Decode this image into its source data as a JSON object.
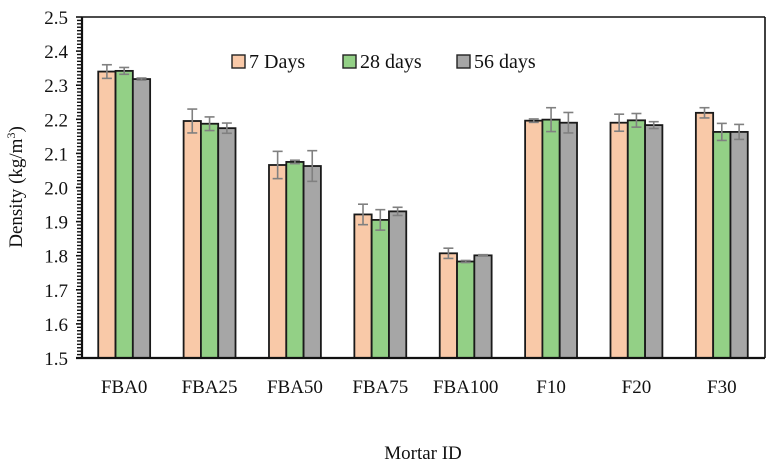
{
  "chart_data": {
    "type": "bar",
    "title": "",
    "xlabel": "Mortar ID",
    "ylabel": "Density (kg/m³)",
    "ylabel_parts": {
      "base": "Density (kg/m",
      "sup": "3",
      "tail": ")"
    },
    "ylim": [
      1.5,
      2.5
    ],
    "yticks": [
      "1.5",
      "1.6",
      "1.7",
      "1.8",
      "1.9",
      "2.0",
      "2.1",
      "2.2",
      "2.3",
      "2.4",
      "2.5"
    ],
    "grid": false,
    "legend_position": "top-center inside",
    "categories": [
      "FBA0",
      "FBA25",
      "FBA50",
      "FBA75",
      "FBA100",
      "F10",
      "F20",
      "F30"
    ],
    "series": [
      {
        "name": "7 Days",
        "color": "#F9C9A8",
        "values": [
          2.34,
          2.195,
          2.066,
          1.921,
          1.807,
          2.196,
          2.19,
          2.219
        ],
        "errors": [
          0.02,
          0.035,
          0.04,
          0.03,
          0.015,
          0.005,
          0.025,
          0.015
        ]
      },
      {
        "name": "28 days",
        "color": "#93D086",
        "values": [
          2.342,
          2.187,
          2.075,
          1.905,
          1.783,
          2.199,
          2.197,
          2.163
        ],
        "errors": [
          0.01,
          0.02,
          0.005,
          0.03,
          0.003,
          0.035,
          0.02,
          0.025
        ]
      },
      {
        "name": "56 days",
        "color": "#A6A6A6",
        "values": [
          2.318,
          2.174,
          2.063,
          1.93,
          1.801,
          2.19,
          2.183,
          2.163
        ],
        "errors": [
          0.003,
          0.015,
          0.045,
          0.012,
          0.002,
          0.03,
          0.01,
          0.022
        ]
      }
    ],
    "error_bar_color": "#808080",
    "bar_edge_color": "#1a1a1a"
  }
}
